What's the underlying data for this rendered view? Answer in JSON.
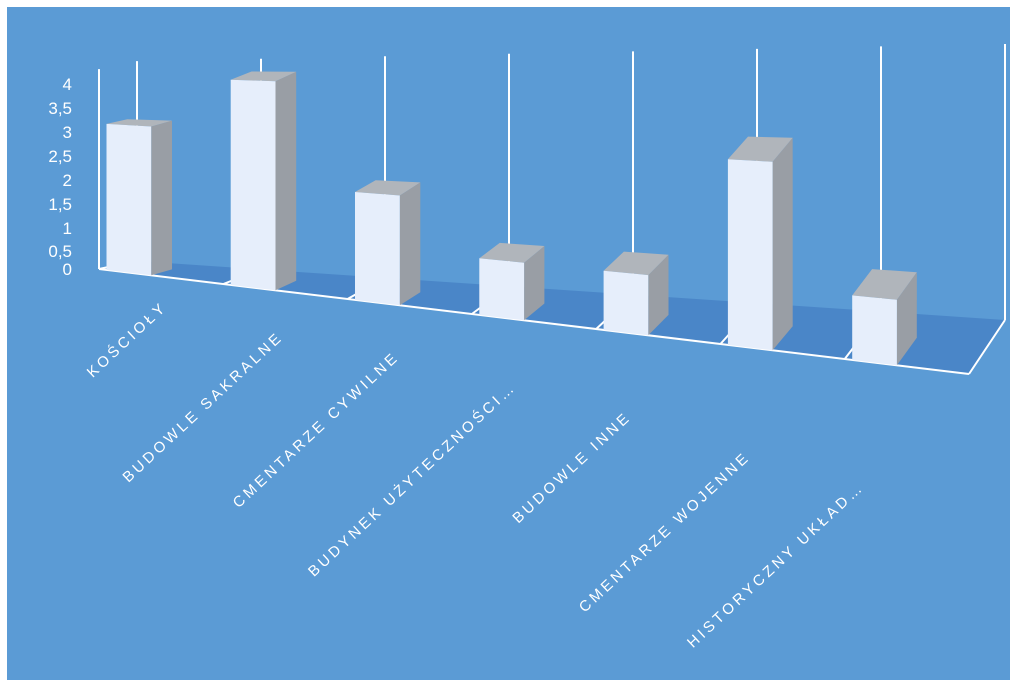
{
  "chart_data": {
    "type": "bar",
    "style": "3d-column",
    "categories": [
      "KOŚCIOŁY",
      "BUDOWLE SAKRALNE",
      "CMENTARZE CYWILNE",
      "BUDYNEK UŻYTECZNOŚCI…",
      "BUDOWLE INNE",
      "CMENTARZE WOJENNE",
      "HISTORYCZNY UKŁAD…"
    ],
    "values": [
      3,
      4,
      2,
      1,
      1,
      3,
      1
    ],
    "ylim": [
      0,
      4
    ],
    "yticks": [
      "0",
      "0,5",
      "1",
      "1,5",
      "2",
      "2,5",
      "3",
      "3,5",
      "4"
    ],
    "title": "",
    "xlabel": "",
    "ylabel": "",
    "grid": true,
    "legend": "none",
    "colors": {
      "background": "#5b9bd5",
      "bar_front": "#e6eefb",
      "bar_side": "#999ea5",
      "bar_top": "#b0b5bb",
      "floor": "#4a86c8",
      "lines": "#ffffff",
      "text": "#ffffff"
    }
  }
}
